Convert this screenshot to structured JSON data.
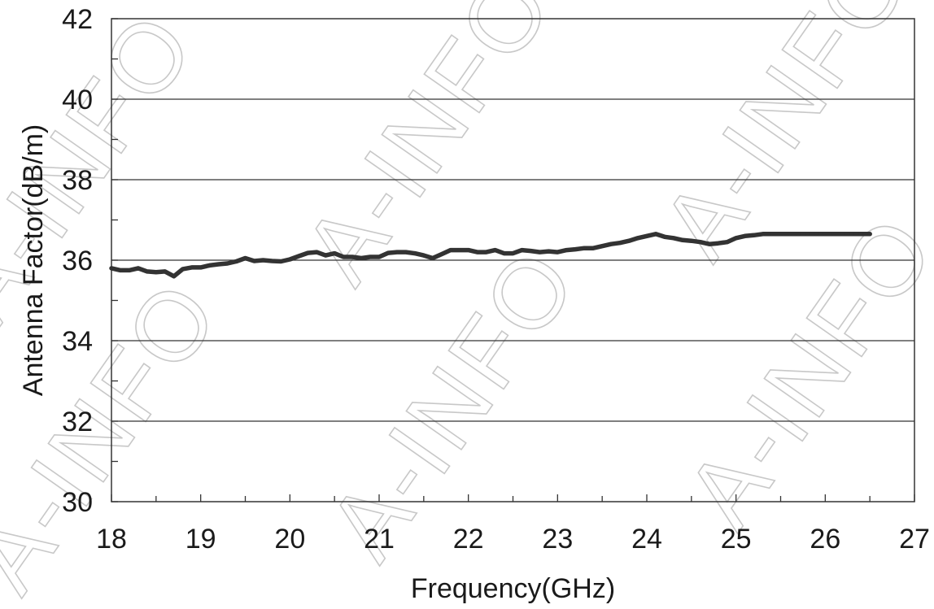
{
  "chart_data": {
    "type": "line",
    "title": "",
    "xlabel": "Frequency(GHz)",
    "ylabel": "Antenna Factor(dB/m)",
    "xlim": [
      18,
      27
    ],
    "ylim": [
      30,
      42
    ],
    "x_ticks": [
      "18",
      "19",
      "20",
      "21",
      "22",
      "23",
      "24",
      "25",
      "26",
      "27"
    ],
    "y_ticks": [
      "30",
      "32",
      "34",
      "36",
      "38",
      "40",
      "42"
    ],
    "grid": "horizontal",
    "legend": "none",
    "series": [
      {
        "color": "#333333",
        "x": [
          18.0,
          18.1,
          18.2,
          18.3,
          18.4,
          18.5,
          18.6,
          18.7,
          18.8,
          18.9,
          19.0,
          19.1,
          19.2,
          19.3,
          19.4,
          19.5,
          19.6,
          19.7,
          19.8,
          19.9,
          20.0,
          20.1,
          20.2,
          20.3,
          20.4,
          20.5,
          20.6,
          20.7,
          20.8,
          20.9,
          21.0,
          21.1,
          21.2,
          21.3,
          21.4,
          21.5,
          21.6,
          21.7,
          21.8,
          21.9,
          22.0,
          22.1,
          22.2,
          22.3,
          22.4,
          22.5,
          22.6,
          22.7,
          22.8,
          22.9,
          23.0,
          23.1,
          23.2,
          23.3,
          23.4,
          23.5,
          23.6,
          23.7,
          23.8,
          23.9,
          24.0,
          24.1,
          24.2,
          24.3,
          24.4,
          24.5,
          24.6,
          24.7,
          24.8,
          24.9,
          25.0,
          25.1,
          25.2,
          25.3,
          25.4,
          25.5,
          25.6,
          25.7,
          25.8,
          25.9,
          26.0,
          26.1,
          26.2,
          26.3,
          26.4,
          26.5
        ],
        "y": [
          35.8,
          35.75,
          35.75,
          35.8,
          35.72,
          35.7,
          35.72,
          35.6,
          35.78,
          35.82,
          35.82,
          35.87,
          35.9,
          35.92,
          35.97,
          36.05,
          35.98,
          36.0,
          35.98,
          35.97,
          36.02,
          36.1,
          36.18,
          36.2,
          36.12,
          36.17,
          36.08,
          36.08,
          36.05,
          36.08,
          36.08,
          36.18,
          36.2,
          36.2,
          36.17,
          36.12,
          36.05,
          36.15,
          36.25,
          36.25,
          36.25,
          36.2,
          36.2,
          36.25,
          36.17,
          36.17,
          36.25,
          36.23,
          36.2,
          36.22,
          36.2,
          36.25,
          36.27,
          36.3,
          36.3,
          36.35,
          36.4,
          36.43,
          36.48,
          36.55,
          36.6,
          36.65,
          36.58,
          36.55,
          36.5,
          36.48,
          36.45,
          36.4,
          36.42,
          36.45,
          36.55,
          36.6,
          36.62,
          36.65,
          36.65,
          36.65,
          36.65,
          36.65,
          36.65,
          36.65,
          36.65,
          36.65,
          36.65,
          36.65,
          36.65,
          36.65
        ]
      }
    ]
  },
  "watermark": {
    "text": "A-INFO",
    "color": "#c8c8c8"
  }
}
